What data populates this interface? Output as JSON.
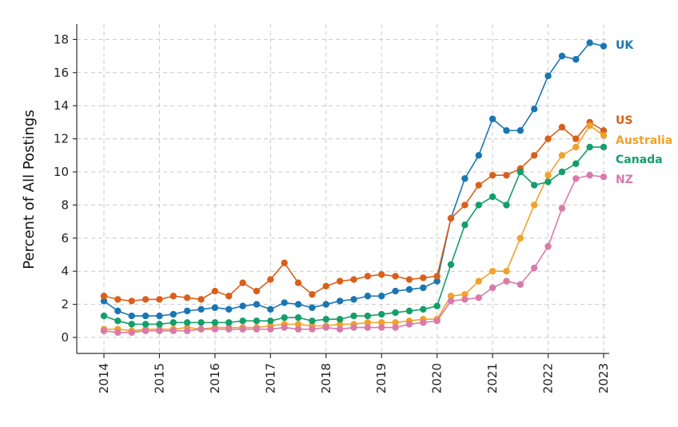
{
  "chart_data": {
    "type": "line",
    "title": "",
    "xlabel": "",
    "ylabel": "Percent of All Postings",
    "x_ticks": [
      "2014",
      "2015",
      "2016",
      "2017",
      "2018",
      "2019",
      "2020",
      "2021",
      "2022",
      "2023"
    ],
    "y_ticks": [
      "0",
      "2",
      "4",
      "6",
      "8",
      "10",
      "12",
      "14",
      "16",
      "18"
    ],
    "xlim": [
      "2014-01",
      "2023-01"
    ],
    "ylim": [
      -1,
      19
    ],
    "grid": true,
    "legend_position": "right end of lines",
    "series_sampling": "quarterly (Jan, Apr, Jul, Oct) 2014-01 to 2023-01",
    "series": [
      {
        "name": "UK",
        "color": "#1a76b3",
        "x": [
          "2014-01",
          "2014-04",
          "2014-07",
          "2014-10",
          "2015-01",
          "2015-04",
          "2015-07",
          "2015-10",
          "2016-01",
          "2016-04",
          "2016-07",
          "2016-10",
          "2017-01",
          "2017-04",
          "2017-07",
          "2017-10",
          "2018-01",
          "2018-04",
          "2018-07",
          "2018-10",
          "2019-01",
          "2019-04",
          "2019-07",
          "2019-10",
          "2020-01",
          "2020-04",
          "2020-07",
          "2020-10",
          "2021-01",
          "2021-04",
          "2021-07",
          "2021-10",
          "2022-01",
          "2022-04",
          "2022-07",
          "2022-10",
          "2023-01"
        ],
        "values": [
          2.2,
          1.6,
          1.3,
          1.3,
          1.3,
          1.4,
          1.6,
          1.7,
          1.8,
          1.7,
          1.9,
          2.0,
          1.7,
          2.1,
          2.0,
          1.8,
          2.0,
          2.2,
          2.3,
          2.5,
          2.5,
          2.8,
          2.9,
          3.0,
          3.4,
          7.2,
          9.6,
          11.0,
          13.2,
          12.5,
          12.5,
          13.8,
          15.8,
          17.0,
          16.8,
          17.8,
          17.6
        ]
      },
      {
        "name": "US",
        "color": "#d9601a",
        "x": [
          "2014-01",
          "2014-04",
          "2014-07",
          "2014-10",
          "2015-01",
          "2015-04",
          "2015-07",
          "2015-10",
          "2016-01",
          "2016-04",
          "2016-07",
          "2016-10",
          "2017-01",
          "2017-04",
          "2017-07",
          "2017-10",
          "2018-01",
          "2018-04",
          "2018-07",
          "2018-10",
          "2019-01",
          "2019-04",
          "2019-07",
          "2019-10",
          "2020-01",
          "2020-04",
          "2020-07",
          "2020-10",
          "2021-01",
          "2021-04",
          "2021-07",
          "2021-10",
          "2022-01",
          "2022-04",
          "2022-07",
          "2022-10",
          "2023-01"
        ],
        "values": [
          2.5,
          2.3,
          2.2,
          2.3,
          2.3,
          2.5,
          2.4,
          2.3,
          2.8,
          2.5,
          3.3,
          2.8,
          3.5,
          4.5,
          3.3,
          2.6,
          3.1,
          3.4,
          3.5,
          3.7,
          3.8,
          3.7,
          3.5,
          3.6,
          3.7,
          7.2,
          8.0,
          9.2,
          9.8,
          9.8,
          10.2,
          11.0,
          12.0,
          12.7,
          12.0,
          13.0,
          12.5
        ]
      },
      {
        "name": "Australia",
        "color": "#f0a22a",
        "x": [
          "2014-01",
          "2014-04",
          "2014-07",
          "2014-10",
          "2015-01",
          "2015-04",
          "2015-07",
          "2015-10",
          "2016-01",
          "2016-04",
          "2016-07",
          "2016-10",
          "2017-01",
          "2017-04",
          "2017-07",
          "2017-10",
          "2018-01",
          "2018-04",
          "2018-07",
          "2018-10",
          "2019-01",
          "2019-04",
          "2019-07",
          "2019-10",
          "2020-01",
          "2020-04",
          "2020-07",
          "2020-10",
          "2021-01",
          "2021-04",
          "2021-07",
          "2021-10",
          "2022-01",
          "2022-04",
          "2022-07",
          "2022-10",
          "2023-01"
        ],
        "values": [
          0.5,
          0.5,
          0.4,
          0.5,
          0.5,
          0.5,
          0.6,
          0.5,
          0.6,
          0.6,
          0.6,
          0.6,
          0.7,
          0.8,
          0.8,
          0.7,
          0.7,
          0.8,
          0.8,
          0.9,
          0.9,
          0.9,
          1.0,
          1.1,
          1.1,
          2.5,
          2.6,
          3.4,
          4.0,
          4.0,
          6.0,
          8.0,
          9.8,
          11.0,
          11.5,
          12.8,
          12.2
        ]
      },
      {
        "name": "Canada",
        "color": "#149e6b",
        "x": [
          "2014-01",
          "2014-04",
          "2014-07",
          "2014-10",
          "2015-01",
          "2015-04",
          "2015-07",
          "2015-10",
          "2016-01",
          "2016-04",
          "2016-07",
          "2016-10",
          "2017-01",
          "2017-04",
          "2017-07",
          "2017-10",
          "2018-01",
          "2018-04",
          "2018-07",
          "2018-10",
          "2019-01",
          "2019-04",
          "2019-07",
          "2019-10",
          "2020-01",
          "2020-04",
          "2020-07",
          "2020-10",
          "2021-01",
          "2021-04",
          "2021-07",
          "2021-10",
          "2022-01",
          "2022-04",
          "2022-07",
          "2022-10",
          "2023-01"
        ],
        "values": [
          1.3,
          1.0,
          0.8,
          0.8,
          0.8,
          0.9,
          0.9,
          0.9,
          0.9,
          0.9,
          1.0,
          1.0,
          1.0,
          1.2,
          1.2,
          1.0,
          1.1,
          1.1,
          1.3,
          1.3,
          1.4,
          1.5,
          1.6,
          1.7,
          1.9,
          4.4,
          6.8,
          8.0,
          8.5,
          8.0,
          10.0,
          9.2,
          9.4,
          10.0,
          10.5,
          11.5,
          11.5
        ]
      },
      {
        "name": "NZ",
        "color": "#d97aa8",
        "x": [
          "2014-01",
          "2014-04",
          "2014-07",
          "2014-10",
          "2015-01",
          "2015-04",
          "2015-07",
          "2015-10",
          "2016-01",
          "2016-04",
          "2016-07",
          "2016-10",
          "2017-01",
          "2017-04",
          "2017-07",
          "2017-10",
          "2018-01",
          "2018-04",
          "2018-07",
          "2018-10",
          "2019-01",
          "2019-04",
          "2019-07",
          "2019-10",
          "2020-01",
          "2020-04",
          "2020-07",
          "2020-10",
          "2021-01",
          "2021-04",
          "2021-07",
          "2021-10",
          "2022-01",
          "2022-04",
          "2022-07",
          "2022-10",
          "2023-01"
        ],
        "values": [
          0.4,
          0.3,
          0.3,
          0.4,
          0.4,
          0.4,
          0.4,
          0.5,
          0.5,
          0.5,
          0.5,
          0.5,
          0.5,
          0.6,
          0.5,
          0.5,
          0.6,
          0.5,
          0.6,
          0.6,
          0.6,
          0.6,
          0.8,
          0.9,
          1.0,
          2.2,
          2.3,
          2.4,
          3.0,
          3.4,
          3.2,
          4.2,
          5.5,
          7.8,
          9.6,
          9.8,
          9.7
        ]
      }
    ]
  }
}
